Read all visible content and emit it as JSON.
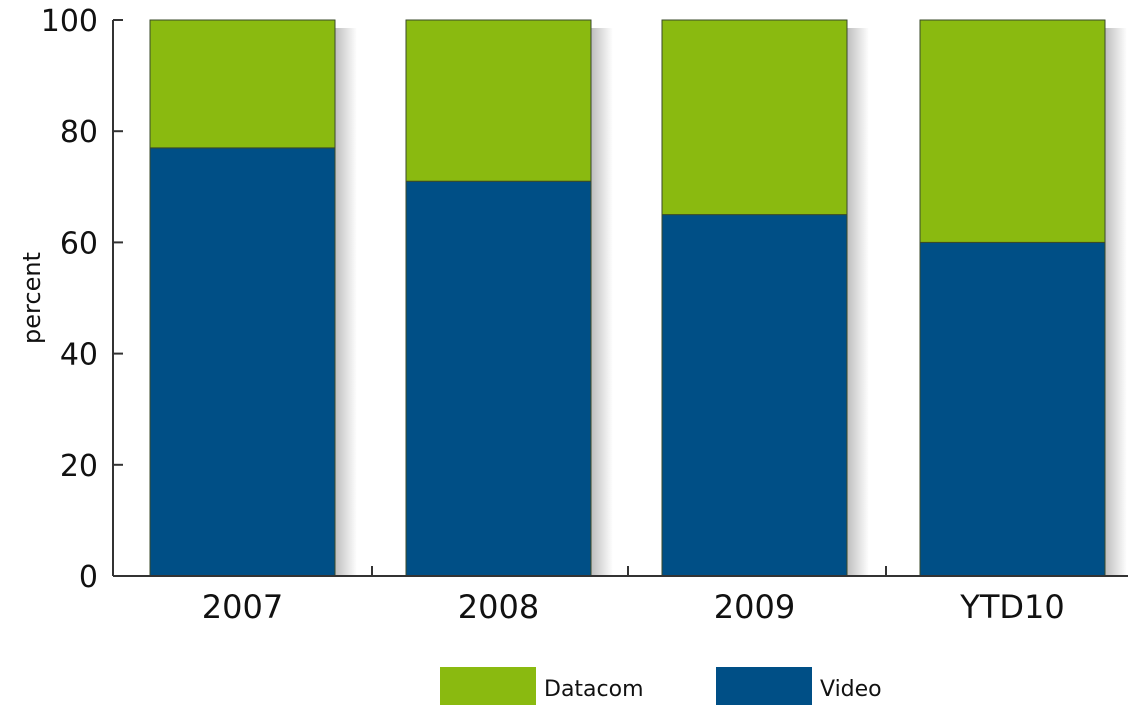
{
  "chart_data": {
    "type": "bar",
    "stacked": true,
    "categories": [
      "2007",
      "2008",
      "2009",
      "YTD10"
    ],
    "series": [
      {
        "name": "Video",
        "values": [
          77,
          71,
          65,
          60
        ],
        "color": "#004f86"
      },
      {
        "name": "Datacom",
        "values": [
          23,
          29,
          35,
          40
        ],
        "color": "#8aba10"
      }
    ],
    "ylabel": "percent",
    "ylim": [
      0,
      100
    ],
    "yticks": [
      "0",
      "20",
      "40",
      "60",
      "80",
      "100"
    ],
    "legend_position": "bottom",
    "legend_order": [
      "Datacom",
      "Video"
    ],
    "grid": false
  }
}
